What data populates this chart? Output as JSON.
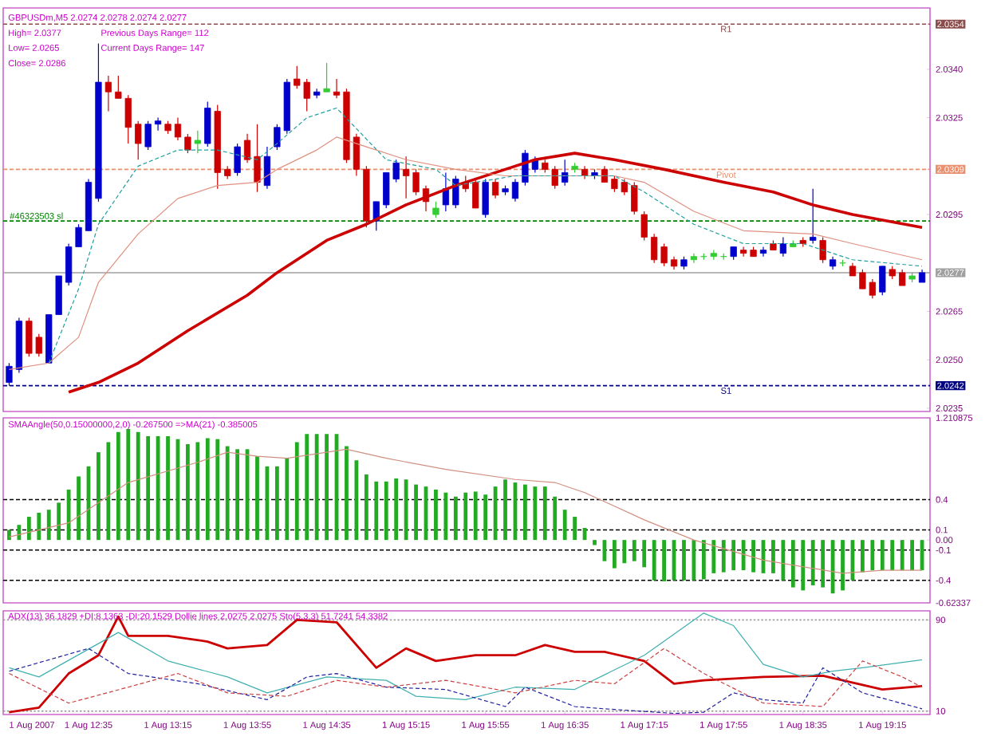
{
  "chart_data": [
    {
      "type": "candlestick",
      "title": "GBPUSDm,M5  2.0274 2.0278 2.0274 2.0277",
      "annotations": [
        "High= 2.0377",
        "Previous Days Range= 112",
        "Low= 2.0265",
        "Current Days Range= 147",
        "Close= 2.0286"
      ],
      "x": [
        "2007-08-01T11:55",
        "2007-08-01T12:00",
        "2007-08-01T12:05",
        "2007-08-01T12:10",
        "2007-08-01T12:15",
        "2007-08-01T12:20",
        "2007-08-01T12:25",
        "2007-08-01T12:30",
        "2007-08-01T12:35",
        "2007-08-01T12:40",
        "2007-08-01T12:45",
        "2007-08-01T12:50",
        "2007-08-01T12:55",
        "2007-08-01T13:00",
        "2007-08-01T13:05",
        "2007-08-01T13:10",
        "2007-08-01T13:15",
        "2007-08-01T13:20",
        "2007-08-01T13:25",
        "2007-08-01T13:30",
        "2007-08-01T13:35",
        "2007-08-01T13:40",
        "2007-08-01T13:45",
        "2007-08-01T13:50",
        "2007-08-01T13:55",
        "2007-08-01T14:00",
        "2007-08-01T14:05",
        "2007-08-01T14:10",
        "2007-08-01T14:15",
        "2007-08-01T14:20",
        "2007-08-01T14:25",
        "2007-08-01T14:30",
        "2007-08-01T14:35",
        "2007-08-01T14:40",
        "2007-08-01T14:45",
        "2007-08-01T14:50",
        "2007-08-01T14:55",
        "2007-08-01T15:00",
        "2007-08-01T15:05",
        "2007-08-01T15:10",
        "2007-08-01T15:15",
        "2007-08-01T15:20",
        "2007-08-01T15:25",
        "2007-08-01T15:30",
        "2007-08-01T15:35",
        "2007-08-01T15:40",
        "2007-08-01T15:45",
        "2007-08-01T15:50",
        "2007-08-01T15:55",
        "2007-08-01T16:00",
        "2007-08-01T16:05",
        "2007-08-01T16:10",
        "2007-08-01T16:15",
        "2007-08-01T16:20",
        "2007-08-01T16:25",
        "2007-08-01T16:30",
        "2007-08-01T16:35",
        "2007-08-01T16:40",
        "2007-08-01T16:45",
        "2007-08-01T16:50",
        "2007-08-01T16:55",
        "2007-08-01T17:00",
        "2007-08-01T17:05",
        "2007-08-01T17:10",
        "2007-08-01T17:15",
        "2007-08-01T17:20",
        "2007-08-01T17:25",
        "2007-08-01T17:30",
        "2007-08-01T17:35",
        "2007-08-01T17:40",
        "2007-08-01T17:45",
        "2007-08-01T17:50",
        "2007-08-01T17:55",
        "2007-08-01T18:00",
        "2007-08-01T18:05",
        "2007-08-01T18:10",
        "2007-08-01T18:15",
        "2007-08-01T18:20",
        "2007-08-01T18:25",
        "2007-08-01T18:30",
        "2007-08-01T18:35",
        "2007-08-01T18:40",
        "2007-08-01T18:45",
        "2007-08-01T18:50",
        "2007-08-01T18:55",
        "2007-08-01T19:00",
        "2007-08-01T19:05",
        "2007-08-01T19:10",
        "2007-08-01T19:15",
        "2007-08-01T19:20",
        "2007-08-01T19:25",
        "2007-08-01T19:30",
        "2007-08-01T19:35"
      ],
      "ohlc": [
        [
          2.0243,
          2.0249,
          2.0242,
          2.0248
        ],
        [
          2.0247,
          2.0263,
          2.0246,
          2.0262
        ],
        [
          2.0262,
          2.0263,
          2.0251,
          2.0252
        ],
        [
          2.0257,
          2.0258,
          2.0251,
          2.0252
        ],
        [
          2.0249,
          2.0264,
          2.0249,
          2.0264
        ],
        [
          2.0264,
          2.0276,
          2.0264,
          2.0276
        ],
        [
          2.0274,
          2.0286,
          2.0273,
          2.0285
        ],
        [
          2.0285,
          2.0292,
          2.0285,
          2.0291
        ],
        [
          2.029,
          2.0306,
          2.029,
          2.0305
        ],
        [
          2.03,
          2.0348,
          2.0299,
          2.0336
        ],
        [
          2.0336,
          2.0338,
          2.0327,
          2.0333
        ],
        [
          2.0333,
          2.0338,
          2.0331,
          2.0331
        ],
        [
          2.0331,
          2.0332,
          2.0317,
          2.0322
        ],
        [
          2.0323,
          2.0324,
          2.0312,
          2.0317
        ],
        [
          2.0316,
          2.0324,
          2.0315,
          2.0323
        ],
        [
          2.0323,
          2.0325,
          2.0321,
          2.0324
        ],
        [
          2.0323,
          2.0324,
          2.032,
          2.0321
        ],
        [
          2.0323,
          2.0325,
          2.0318,
          2.0319
        ],
        [
          2.0319,
          2.032,
          2.0314,
          2.0315
        ],
        [
          2.0317,
          2.0321,
          2.0314,
          2.0318
        ],
        [
          2.0317,
          2.033,
          2.0316,
          2.0328
        ],
        [
          2.0327,
          2.0329,
          2.0303,
          2.0308
        ],
        [
          2.0309,
          2.031,
          2.0306,
          2.0307
        ],
        [
          2.0308,
          2.0317,
          2.0307,
          2.0316
        ],
        [
          2.0318,
          2.032,
          2.0311,
          2.0312
        ],
        [
          2.0313,
          2.0323,
          2.0302,
          2.0305
        ],
        [
          2.0304,
          2.0316,
          2.0303,
          2.0313
        ],
        [
          2.0316,
          2.0323,
          2.0315,
          2.0322
        ],
        [
          2.0321,
          2.0337,
          2.032,
          2.0336
        ],
        [
          2.0337,
          2.0341,
          2.0334,
          2.0335
        ],
        [
          2.0336,
          2.0337,
          2.0327,
          2.0331
        ],
        [
          2.0332,
          2.0334,
          2.0331,
          2.0333
        ],
        [
          2.0333,
          2.0342,
          2.0333,
          2.0334
        ],
        [
          2.0333,
          2.0337,
          2.0331,
          2.0332
        ],
        [
          2.0333,
          2.0334,
          2.0311,
          2.0312
        ],
        [
          2.0319,
          2.032,
          2.0307,
          2.0309
        ],
        [
          2.0309,
          2.031,
          2.0291,
          2.0293
        ],
        [
          2.0293,
          2.0299,
          2.029,
          2.0299
        ],
        [
          2.0298,
          2.0308,
          2.0297,
          2.0308
        ],
        [
          2.0306,
          2.0312,
          2.0305,
          2.0311
        ],
        [
          2.0309,
          2.0313,
          2.03,
          2.0307
        ],
        [
          2.0308,
          2.0309,
          2.0301,
          2.0302
        ],
        [
          2.0303,
          2.0304,
          2.0296,
          2.0299
        ],
        [
          2.0295,
          2.0299,
          2.0294,
          2.0297
        ],
        [
          2.0298,
          2.0308,
          2.0296,
          2.0303
        ],
        [
          2.0298,
          2.0307,
          2.0297,
          2.0306
        ],
        [
          2.0305,
          2.0307,
          2.0302,
          2.0303
        ],
        [
          2.0305,
          2.0306,
          2.0297,
          2.0297
        ],
        [
          2.0295,
          2.0306,
          2.0294,
          2.0305
        ],
        [
          2.0305,
          2.0306,
          2.03,
          2.0301
        ],
        [
          2.0302,
          2.0304,
          2.0301,
          2.0303
        ],
        [
          2.03,
          2.0306,
          2.0299,
          2.0305
        ],
        [
          2.0305,
          2.0315,
          2.0304,
          2.0314
        ],
        [
          2.0309,
          2.0313,
          2.0308,
          2.0312
        ],
        [
          2.0311,
          2.0312,
          2.0308,
          2.0309
        ],
        [
          2.0309,
          2.031,
          2.0303,
          2.0304
        ],
        [
          2.0305,
          2.0312,
          2.0304,
          2.0308
        ],
        [
          2.0309,
          2.0311,
          2.0308,
          2.031
        ],
        [
          2.0309,
          2.031,
          2.0306,
          2.0307
        ],
        [
          2.0307,
          2.0309,
          2.0306,
          2.0308
        ],
        [
          2.0309,
          2.031,
          2.0305,
          2.0305
        ],
        [
          2.0306,
          2.0307,
          2.0302,
          2.0303
        ],
        [
          2.0305,
          2.0306,
          2.0301,
          2.0302
        ],
        [
          2.0304,
          2.0305,
          2.0295,
          2.0296
        ],
        [
          2.0295,
          2.0296,
          2.0287,
          2.0288
        ],
        [
          2.0288,
          2.0289,
          2.028,
          2.0281
        ],
        [
          2.0285,
          2.0286,
          2.0279,
          2.028
        ],
        [
          2.0281,
          2.0282,
          2.0278,
          2.0279
        ],
        [
          2.0279,
          2.0282,
          2.0278,
          2.0281
        ],
        [
          2.0281,
          2.0283,
          2.028,
          2.0282
        ],
        [
          2.0282,
          2.0283,
          2.0281,
          2.0282
        ],
        [
          2.0282,
          2.0284,
          2.0281,
          2.0283
        ],
        [
          2.0282,
          2.0283,
          2.0281,
          2.0282
        ],
        [
          2.0282,
          2.0285,
          2.0281,
          2.0285
        ],
        [
          2.0284,
          2.0285,
          2.0282,
          2.0283
        ],
        [
          2.0284,
          2.0285,
          2.0282,
          2.0282
        ],
        [
          2.0283,
          2.0285,
          2.0282,
          2.0284
        ],
        [
          2.0286,
          2.0287,
          2.0284,
          2.0284
        ],
        [
          2.0283,
          2.0288,
          2.0282,
          2.0286
        ],
        [
          2.0285,
          2.0287,
          2.0285,
          2.0286
        ],
        [
          2.0287,
          2.0288,
          2.0285,
          2.0286
        ],
        [
          2.0287,
          2.0303,
          2.0286,
          2.0288
        ],
        [
          2.0287,
          2.0288,
          2.028,
          2.0281
        ],
        [
          2.0279,
          2.0282,
          2.0278,
          2.0281
        ],
        [
          2.028,
          2.0281,
          2.0279,
          2.028
        ],
        [
          2.0279,
          2.028,
          2.0276,
          2.0276
        ],
        [
          2.0277,
          2.0278,
          2.0272,
          2.0272
        ],
        [
          2.0274,
          2.0275,
          2.0269,
          2.027
        ],
        [
          2.0271,
          2.0279,
          2.027,
          2.0279
        ],
        [
          2.0278,
          2.0279,
          2.0275,
          2.0276
        ],
        [
          2.0277,
          2.0278,
          2.0273,
          2.0273
        ],
        [
          2.0275,
          2.0277,
          2.0274,
          2.0276
        ],
        [
          2.0274,
          2.0278,
          2.0274,
          2.0277
        ]
      ],
      "colors": [
        "#0000cc",
        "#0000cc",
        "#cc0000",
        "#cc0000",
        "#0000cc",
        "#0000cc",
        "#0000cc",
        "#0000cc",
        "#0000cc",
        "#0000cc",
        "#cc0000",
        "#cc0000",
        "#cc0000",
        "#cc0000",
        "#0000cc",
        "#0000cc",
        "#cc0000",
        "#cc0000",
        "#cc0000",
        "#33cc33",
        "#0000cc",
        "#cc0000",
        "#cc0000",
        "#0000cc",
        "#cc0000",
        "#cc0000",
        "#0000cc",
        "#0000cc",
        "#0000cc",
        "#cc0000",
        "#cc0000",
        "#0000cc",
        "#33cc33",
        "#cc0000",
        "#cc0000",
        "#cc0000",
        "#cc0000",
        "#0000cc",
        "#0000cc",
        "#0000cc",
        "#cc0000",
        "#cc0000",
        "#cc0000",
        "#33cc33",
        "#0000cc",
        "#0000cc",
        "#cc0000",
        "#cc0000",
        "#0000cc",
        "#cc0000",
        "#0000cc",
        "#0000cc",
        "#0000cc",
        "#0000cc",
        "#cc0000",
        "#cc0000",
        "#0000cc",
        "#33cc33",
        "#cc0000",
        "#0000cc",
        "#cc0000",
        "#cc0000",
        "#cc0000",
        "#cc0000",
        "#cc0000",
        "#cc0000",
        "#cc0000",
        "#cc0000",
        "#0000cc",
        "#33cc33",
        "#33cc33",
        "#33cc33",
        "#33cc33",
        "#0000cc",
        "#cc0000",
        "#cc0000",
        "#0000cc",
        "#cc0000",
        "#0000cc",
        "#33cc33",
        "#cc0000",
        "#0000cc",
        "#cc0000",
        "#0000cc",
        "#33cc33",
        "#cc0000",
        "#cc0000",
        "#cc0000",
        "#0000cc",
        "#cc0000",
        "#cc0000",
        "#33cc33",
        "#0000cc"
      ],
      "series": [
        {
          "type": "line",
          "color": "#cc0000",
          "x": [
            "2007-08-01T12:25",
            "2007-08-01T12:40",
            "2007-08-01T13:00",
            "2007-08-01T13:25",
            "2007-08-01T13:55",
            "2007-08-01T14:10",
            "2007-08-01T14:35",
            "2007-08-01T14:55",
            "2007-08-01T15:15",
            "2007-08-01T15:40",
            "2007-08-01T16:05",
            "2007-08-01T16:20",
            "2007-08-01T16:40",
            "2007-08-01T17:00",
            "2007-08-01T17:25",
            "2007-08-01T17:55",
            "2007-08-01T18:20",
            "2007-08-01T18:40",
            "2007-08-01T19:00",
            "2007-08-01T19:35"
          ],
          "values": [
            2.024,
            2.0243,
            2.0249,
            2.0259,
            2.027,
            2.0277,
            2.0287,
            2.0292,
            2.0298,
            2.0304,
            2.0309,
            2.0312,
            2.0314,
            2.0312,
            2.0309,
            2.0305,
            2.0302,
            2.0298,
            2.0295,
            2.0291
          ]
        },
        {
          "type": "line",
          "color": "#e09080",
          "x": [
            "2007-08-01T11:55",
            "2007-08-01T12:15",
            "2007-08-01T12:30",
            "2007-08-01T12:40",
            "2007-08-01T13:00",
            "2007-08-01T13:20",
            "2007-08-01T13:40",
            "2007-08-01T14:00",
            "2007-08-01T14:10",
            "2007-08-01T14:30",
            "2007-08-01T14:40",
            "2007-08-01T14:55",
            "2007-08-01T15:15",
            "2007-08-01T15:40",
            "2007-08-01T16:05",
            "2007-08-01T16:20",
            "2007-08-01T17:00",
            "2007-08-01T17:15",
            "2007-08-01T17:40",
            "2007-08-01T18:05",
            "2007-08-01T18:40",
            "2007-08-01T19:00",
            "2007-08-01T19:35"
          ],
          "values": [
            2.0247,
            2.0249,
            2.0257,
            2.0274,
            2.0289,
            2.03,
            2.0304,
            2.0305,
            2.0309,
            2.0315,
            2.0319,
            2.0316,
            2.0312,
            2.0309,
            2.0307,
            2.0307,
            2.0307,
            2.0305,
            2.0296,
            2.029,
            2.0289,
            2.0286,
            2.0281
          ]
        },
        {
          "type": "line",
          "color": "#20a0a0",
          "line_style": "dashed",
          "x": [
            "2007-08-01T12:15",
            "2007-08-01T12:30",
            "2007-08-01T12:40",
            "2007-08-01T13:00",
            "2007-08-01T13:20",
            "2007-08-01T13:40",
            "2007-08-01T14:00",
            "2007-08-01T14:10",
            "2007-08-01T14:25",
            "2007-08-01T14:40",
            "2007-08-01T15:05",
            "2007-08-01T15:30",
            "2007-08-01T15:40",
            "2007-08-01T16:10",
            "2007-08-01T17:00",
            "2007-08-01T17:15",
            "2007-08-01T17:40",
            "2007-08-01T18:05",
            "2007-08-01T18:35",
            "2007-08-01T19:00",
            "2007-08-01T19:35"
          ],
          "values": [
            2.0249,
            2.0272,
            2.0292,
            2.031,
            2.0315,
            2.0315,
            2.0312,
            2.0317,
            2.0325,
            2.0328,
            2.0312,
            2.0309,
            2.0304,
            2.0307,
            2.0307,
            2.0302,
            2.0292,
            2.0286,
            2.0286,
            2.0281,
            2.0279
          ]
        }
      ],
      "ref_lines": [
        {
          "axis": "y",
          "value": 2.0354,
          "label": "R1",
          "color": "#8b4c4c",
          "line_style": "dashed"
        },
        {
          "axis": "y",
          "value": 2.0309,
          "label": "Pivot",
          "color": "#e89070",
          "line_style": "dashed"
        },
        {
          "axis": "y",
          "value": 2.0293,
          "label": "#46323503 sl",
          "color": "#008000",
          "line_style": "dashed"
        },
        {
          "axis": "y",
          "value": 2.0277,
          "color": "#a0a0a0",
          "line_style": "solid"
        },
        {
          "axis": "y",
          "value": 2.0242,
          "label": "S1",
          "color": "#000080",
          "line_style": "dashed"
        }
      ],
      "xlim": [
        "2007-08-01T11:52",
        "2007-08-01T19:39"
      ],
      "ylim": [
        2.0234,
        2.0359
      ],
      "yticks": [
        2.0354,
        {
          "value": 2.034,
          "label": "2.0340"
        },
        2.0325,
        2.0309,
        2.0295,
        2.0277,
        2.0265,
        {
          "value": 2.025,
          "label": "2.0250"
        },
        2.0242,
        2.0235
      ],
      "tick_labels": "y"
    },
    {
      "type": "bar",
      "title": "SMAAngle(50,0.15000000,2,0) -0.267500  =>MA(21) -0.385005",
      "color": "#22aa22",
      "x": [
        "2007-08-01T11:55",
        "2007-08-01T12:00",
        "2007-08-01T12:05",
        "2007-08-01T12:10",
        "2007-08-01T12:15",
        "2007-08-01T12:20",
        "2007-08-01T12:25",
        "2007-08-01T12:30",
        "2007-08-01T12:35",
        "2007-08-01T12:40",
        "2007-08-01T12:45",
        "2007-08-01T12:50",
        "2007-08-01T12:55",
        "2007-08-01T13:00",
        "2007-08-01T13:05",
        "2007-08-01T13:10",
        "2007-08-01T13:15",
        "2007-08-01T13:20",
        "2007-08-01T13:25",
        "2007-08-01T13:30",
        "2007-08-01T13:35",
        "2007-08-01T13:40",
        "2007-08-01T13:45",
        "2007-08-01T13:50",
        "2007-08-01T13:55",
        "2007-08-01T14:00",
        "2007-08-01T14:05",
        "2007-08-01T14:10",
        "2007-08-01T14:15",
        "2007-08-01T14:20",
        "2007-08-01T14:25",
        "2007-08-01T14:30",
        "2007-08-01T14:35",
        "2007-08-01T14:40",
        "2007-08-01T14:45",
        "2007-08-01T14:50",
        "2007-08-01T14:55",
        "2007-08-01T15:00",
        "2007-08-01T15:05",
        "2007-08-01T15:10",
        "2007-08-01T15:15",
        "2007-08-01T15:20",
        "2007-08-01T15:25",
        "2007-08-01T15:30",
        "2007-08-01T15:35",
        "2007-08-01T15:40",
        "2007-08-01T15:45",
        "2007-08-01T15:50",
        "2007-08-01T15:55",
        "2007-08-01T16:00",
        "2007-08-01T16:05",
        "2007-08-01T16:10",
        "2007-08-01T16:15",
        "2007-08-01T16:20",
        "2007-08-01T16:25",
        "2007-08-01T16:30",
        "2007-08-01T16:35",
        "2007-08-01T16:40",
        "2007-08-01T16:45",
        "2007-08-01T16:50",
        "2007-08-01T16:55",
        "2007-08-01T17:00",
        "2007-08-01T17:05",
        "2007-08-01T17:10",
        "2007-08-01T17:15",
        "2007-08-01T17:20",
        "2007-08-01T17:25",
        "2007-08-01T17:30",
        "2007-08-01T17:35",
        "2007-08-01T17:40",
        "2007-08-01T17:45",
        "2007-08-01T17:50",
        "2007-08-01T17:55",
        "2007-08-01T18:00",
        "2007-08-01T18:05",
        "2007-08-01T18:10",
        "2007-08-01T18:15",
        "2007-08-01T18:20",
        "2007-08-01T18:25",
        "2007-08-01T18:30",
        "2007-08-01T18:35",
        "2007-08-01T18:40",
        "2007-08-01T18:45",
        "2007-08-01T18:50",
        "2007-08-01T18:55",
        "2007-08-01T19:00",
        "2007-08-01T19:05",
        "2007-08-01T19:10",
        "2007-08-01T19:15",
        "2007-08-01T19:20",
        "2007-08-01T19:25",
        "2007-08-01T19:30",
        "2007-08-01T19:35"
      ],
      "values": [
        0.1,
        0.15,
        0.23,
        0.27,
        0.3,
        0.37,
        0.5,
        0.63,
        0.73,
        0.87,
        0.97,
        1.07,
        1.1,
        1.07,
        1.03,
        1.03,
        1.03,
        1.0,
        0.95,
        0.97,
        1.01,
        1.0,
        0.93,
        0.9,
        0.9,
        0.83,
        0.73,
        0.73,
        0.81,
        0.97,
        1.05,
        1.05,
        1.05,
        1.05,
        0.93,
        0.79,
        0.65,
        0.58,
        0.58,
        0.61,
        0.6,
        0.55,
        0.53,
        0.5,
        0.47,
        0.43,
        0.47,
        0.48,
        0.45,
        0.53,
        0.6,
        0.57,
        0.55,
        0.53,
        0.53,
        0.43,
        0.3,
        0.23,
        0.12,
        -0.05,
        -0.21,
        -0.28,
        -0.23,
        -0.21,
        -0.27,
        -0.4,
        -0.41,
        -0.4,
        -0.4,
        -0.4,
        -0.39,
        -0.33,
        -0.32,
        -0.3,
        -0.3,
        -0.32,
        -0.33,
        -0.33,
        -0.4,
        -0.47,
        -0.5,
        -0.45,
        -0.47,
        -0.53,
        -0.5,
        -0.4,
        -0.32,
        -0.3,
        -0.3,
        -0.3,
        -0.3,
        -0.3,
        -0.3
      ],
      "series": [
        {
          "type": "line",
          "color": "#d09080",
          "x": [
            "2007-08-01T11:55",
            "2007-08-01T12:25",
            "2007-08-01T12:55",
            "2007-08-01T13:30",
            "2007-08-01T13:45",
            "2007-08-01T14:00",
            "2007-08-01T14:15",
            "2007-08-01T14:45",
            "2007-08-01T15:05",
            "2007-08-01T15:35",
            "2007-08-01T16:10",
            "2007-08-01T16:30",
            "2007-08-01T16:45",
            "2007-08-01T17:15",
            "2007-08-01T17:40",
            "2007-08-01T18:15",
            "2007-08-01T18:55",
            "2007-08-01T19:15",
            "2007-08-01T19:35"
          ],
          "values": [
            0.03,
            0.17,
            0.57,
            0.77,
            0.87,
            0.83,
            0.81,
            0.9,
            0.81,
            0.7,
            0.6,
            0.57,
            0.47,
            0.2,
            0.0,
            -0.2,
            -0.33,
            -0.3,
            -0.3
          ]
        }
      ],
      "ref_lines": [
        {
          "axis": "y",
          "value": 0.4,
          "color": "#000000",
          "line_style": "dashed"
        },
        {
          "axis": "y",
          "value": 0.1,
          "color": "#000000",
          "line_style": "dashed"
        },
        {
          "axis": "y",
          "value": -0.1,
          "color": "#000000",
          "line_style": "dashed"
        },
        {
          "axis": "y",
          "value": -0.4,
          "color": "#000000",
          "line_style": "dashed"
        }
      ],
      "xlim": [
        "2007-08-01T11:52",
        "2007-08-01T19:39"
      ],
      "ylim": [
        -0.62337,
        1.210875
      ],
      "yticks": [
        1.210875,
        0.4,
        0.1,
        {
          "value": 0,
          "label": "0.00"
        },
        -0.1,
        -0.4,
        -0.62337
      ],
      "tick_labels": "y"
    },
    {
      "type": "line",
      "title": "ADX(13) 36.1829 +DI:8.1363 -DI:20.1529 Dollie lines 2.0275 2.0275 Sto(5,3,3) 51.7241 54.3382",
      "series": [
        {
          "color": "#cc0000",
          "x": [
            "2007-08-01T11:55",
            "2007-08-01T12:10",
            "2007-08-01T12:25",
            "2007-08-01T12:40",
            "2007-08-01T12:50",
            "2007-08-01T12:55",
            "2007-08-01T13:15",
            "2007-08-01T13:35",
            "2007-08-01T13:45",
            "2007-08-01T14:05",
            "2007-08-01T14:20",
            "2007-08-01T14:40",
            "2007-08-01T15:00",
            "2007-08-01T15:15",
            "2007-08-01T15:30",
            "2007-08-01T15:50",
            "2007-08-01T16:10",
            "2007-08-01T16:25",
            "2007-08-01T16:40",
            "2007-08-01T16:55",
            "2007-08-01T17:15",
            "2007-08-01T17:30",
            "2007-08-01T17:45",
            "2007-08-01T18:15",
            "2007-08-01T18:45",
            "2007-08-01T19:15",
            "2007-08-01T19:35"
          ],
          "values": [
            9,
            13,
            43,
            59,
            93,
            76,
            76,
            71,
            65,
            68,
            90,
            88,
            48,
            65,
            54,
            59,
            59,
            68,
            62,
            62,
            54,
            34,
            37,
            40,
            41,
            29,
            32
          ]
        },
        {
          "color": "#40b0b0",
          "x": [
            "2007-08-01T11:55",
            "2007-08-01T12:10",
            "2007-08-01T12:50",
            "2007-08-01T13:15",
            "2007-08-01T13:45",
            "2007-08-01T14:05",
            "2007-08-01T14:35",
            "2007-08-01T15:05",
            "2007-08-01T15:20",
            "2007-08-01T15:45",
            "2007-08-01T16:10",
            "2007-08-01T16:40",
            "2007-08-01T17:15",
            "2007-08-01T17:45",
            "2007-08-01T18:00",
            "2007-08-01T18:15",
            "2007-08-01T18:35",
            "2007-08-01T18:50",
            "2007-08-01T19:05",
            "2007-08-01T19:35"
          ],
          "values": [
            48,
            40,
            79,
            54,
            40,
            26,
            40,
            37,
            23,
            20,
            31,
            29,
            59,
            96,
            85,
            51,
            40,
            45,
            48,
            55
          ]
        },
        {
          "color": "#2020a0",
          "line_style": "dashed",
          "x": [
            "2007-08-01T11:55",
            "2007-08-01T12:35",
            "2007-08-01T12:55",
            "2007-08-01T13:30",
            "2007-08-01T14:05",
            "2007-08-01T14:25",
            "2007-08-01T14:40",
            "2007-08-01T15:05",
            "2007-08-01T15:35",
            "2007-08-01T16:05",
            "2007-08-01T16:15",
            "2007-08-01T16:40",
            "2007-08-01T16:55",
            "2007-08-01T17:30",
            "2007-08-01T17:45",
            "2007-08-01T18:00",
            "2007-08-01T18:15",
            "2007-08-01T18:35",
            "2007-08-01T18:45",
            "2007-08-01T19:05",
            "2007-08-01T19:35"
          ],
          "values": [
            45,
            65,
            43,
            34,
            20,
            40,
            43,
            31,
            29,
            14,
            31,
            14,
            12,
            8,
            9,
            26,
            20,
            17,
            48,
            26,
            12
          ]
        },
        {
          "color": "#cc4040",
          "line_style": "dashed",
          "x": [
            "2007-08-01T11:55",
            "2007-08-01T12:25",
            "2007-08-01T12:55",
            "2007-08-01T13:20",
            "2007-08-01T13:45",
            "2007-08-01T14:15",
            "2007-08-01T14:40",
            "2007-08-01T15:05",
            "2007-08-01T15:35",
            "2007-08-01T16:10",
            "2007-08-01T16:40",
            "2007-08-01T17:00",
            "2007-08-01T17:25",
            "2007-08-01T17:45",
            "2007-08-01T18:15",
            "2007-08-01T18:45",
            "2007-08-01T19:05",
            "2007-08-01T19:25",
            "2007-08-01T19:35"
          ],
          "values": [
            43,
            17,
            31,
            43,
            26,
            23,
            37,
            31,
            37,
            26,
            37,
            34,
            65,
            43,
            17,
            14,
            54,
            40,
            31
          ]
        }
      ],
      "ref_lines": [
        {
          "axis": "y",
          "value": 90,
          "color": "#a0a0a0",
          "line_style": "dotted"
        },
        {
          "axis": "y",
          "value": 10,
          "color": "#909090",
          "line_style": "dotted"
        }
      ],
      "xlim": [
        "2007-08-01T11:52",
        "2007-08-01T19:39"
      ],
      "ylim": [
        7,
        98
      ],
      "yticks": [
        90,
        10
      ],
      "xticks": [
        {
          "value": "2007-08-01T11:55",
          "label": "1 Aug 2007"
        },
        {
          "value": "2007-08-01T12:35",
          "label": "1 Aug 12:35"
        },
        {
          "value": "2007-08-01T13:15",
          "label": "1 Aug 13:15"
        },
        {
          "value": "2007-08-01T13:55",
          "label": "1 Aug 13:55"
        },
        {
          "value": "2007-08-01T14:35",
          "label": "1 Aug 14:35"
        },
        {
          "value": "2007-08-01T15:15",
          "label": "1 Aug 15:15"
        },
        {
          "value": "2007-08-01T15:55",
          "label": "1 Aug 15:55"
        },
        {
          "value": "2007-08-01T16:35",
          "label": "1 Aug 16:35"
        },
        {
          "value": "2007-08-01T17:15",
          "label": "1 Aug 17:15"
        },
        {
          "value": "2007-08-01T17:55",
          "label": "1 Aug 17:55"
        },
        {
          "value": "2007-08-01T18:35",
          "label": "1 Aug 18:35"
        },
        {
          "value": "2007-08-01T19:15",
          "label": "1 Aug 19:15"
        }
      ]
    }
  ]
}
